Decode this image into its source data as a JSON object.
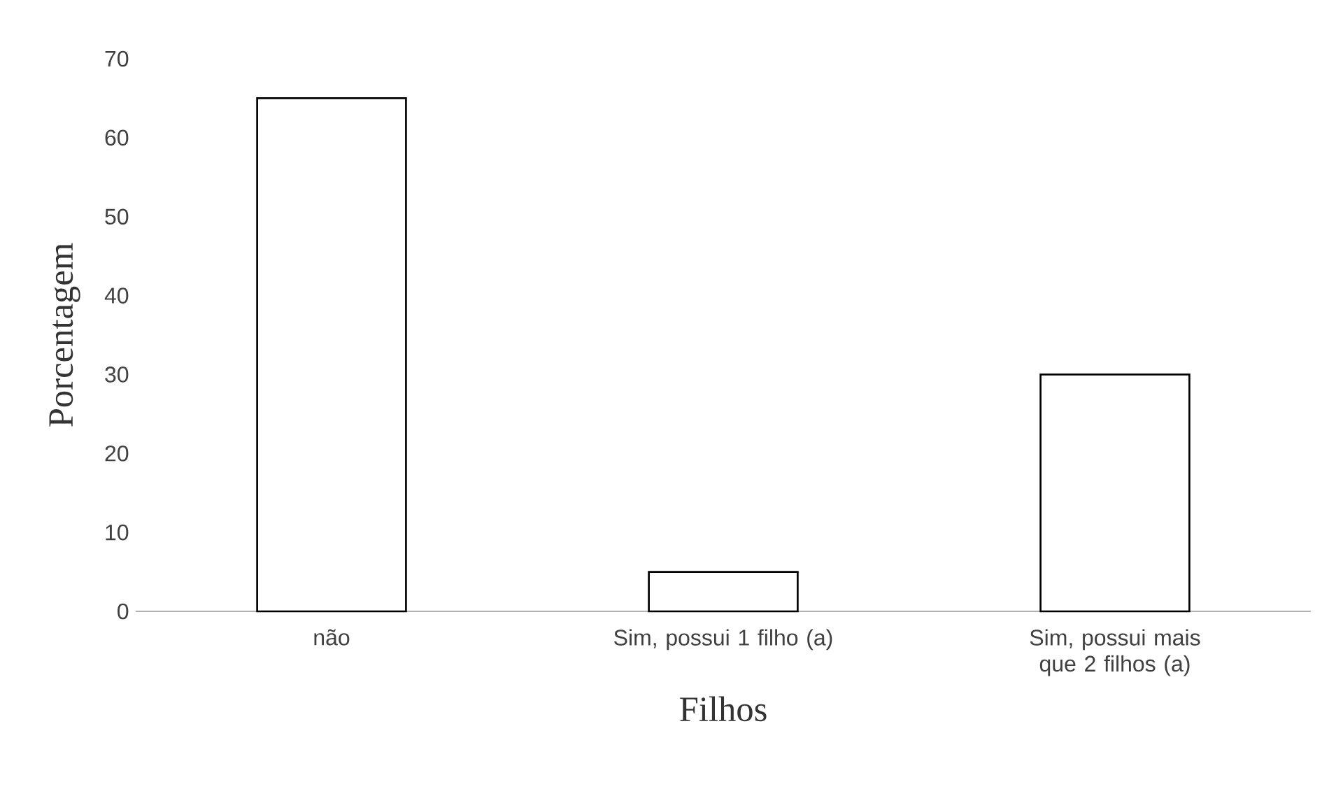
{
  "chart_data": {
    "type": "bar",
    "xlabel": "Filhos",
    "ylabel": "Porcentagem",
    "categories": [
      "não",
      "Sim, possui 1 filho (a)",
      "Sim, possui mais que 2 filhos (a)"
    ],
    "values": [
      65,
      5,
      30
    ],
    "color": "#ffffff",
    "ylim": [
      0,
      70
    ],
    "yticks": [
      0,
      10,
      20,
      30,
      40,
      50,
      60,
      70
    ]
  }
}
